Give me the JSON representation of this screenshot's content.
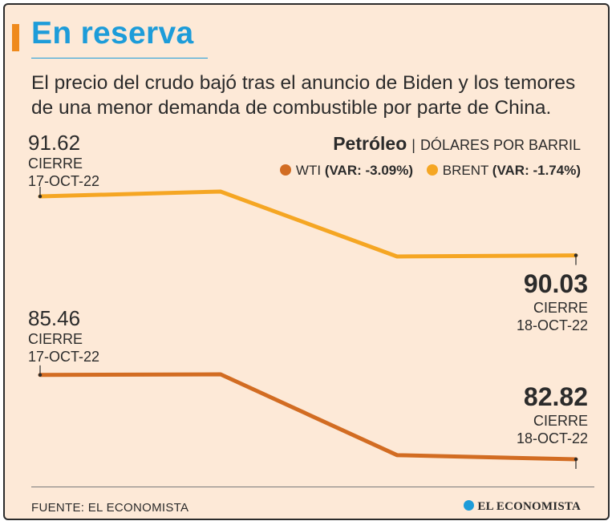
{
  "header": {
    "title": "En reserva",
    "subtitle": "El precio del crudo bajó tras el anuncio de Biden y los temores de una menor demanda de combustible por parte de China."
  },
  "legend": {
    "title": "Petróleo",
    "unit": "DÓLARES POR BARRIL",
    "wti_label": "WTI",
    "wti_var": "(VAR: -3.09%)",
    "brent_label": "BRENT",
    "brent_var": "(VAR: -1.74%)"
  },
  "annotations": {
    "brent_start": {
      "value": "91.62",
      "label": "CIERRE",
      "date": "17-OCT-22"
    },
    "brent_end": {
      "value": "90.03",
      "label": "CIERRE",
      "date": "18-OCT-22"
    },
    "wti_start": {
      "value": "85.46",
      "label": "CIERRE",
      "date": "17-OCT-22"
    },
    "wti_end": {
      "value": "82.82",
      "label": "CIERRE",
      "date": "18-OCT-22"
    }
  },
  "footer": {
    "source": "FUENTE: EL ECONOMISTA",
    "logo_text": "EL ECONOMISTA"
  },
  "colors": {
    "wti": "#d26c22",
    "brent": "#f5a623",
    "title": "#1d9cd9",
    "background": "#fde9d7"
  },
  "chart_data": {
    "type": "line",
    "title": "Petróleo",
    "ylabel": "Dólares por barril",
    "x": [
      0,
      1,
      2,
      3
    ],
    "series": [
      {
        "name": "BRENT",
        "values": [
          91.62,
          91.75,
          90.0,
          90.03
        ]
      },
      {
        "name": "WTI",
        "values": [
          85.46,
          85.48,
          82.95,
          82.82
        ]
      }
    ]
  }
}
